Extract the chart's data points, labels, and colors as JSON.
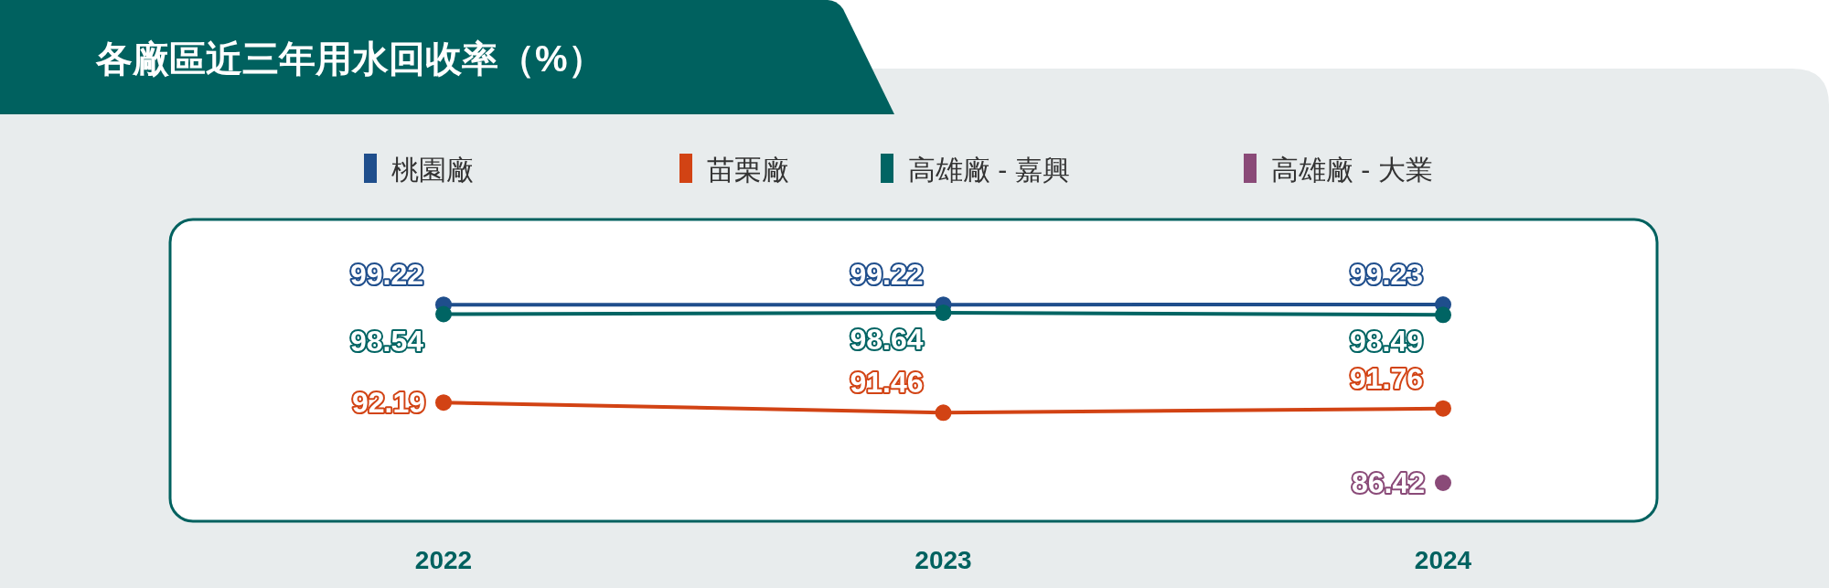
{
  "chart_data": {
    "type": "line",
    "title": "各廠區近三年用水回收率（%）",
    "categories": [
      "2022",
      "2023",
      "2024"
    ],
    "series": [
      {
        "name": "桃園廠",
        "color": "#1f4e8c",
        "values": [
          99.22,
          99.22,
          99.23
        ]
      },
      {
        "name": "苗栗廠",
        "color": "#d24314",
        "values": [
          92.19,
          91.46,
          91.76
        ]
      },
      {
        "name": "高雄廠 - 嘉興",
        "color": "#006463",
        "values": [
          98.54,
          98.64,
          98.49
        ]
      },
      {
        "name": "高雄廠 - 大業",
        "color": "#8a4a78",
        "values": [
          null,
          null,
          86.42
        ]
      }
    ],
    "data_labels": true,
    "marker": "circle",
    "legend": "top"
  }
}
